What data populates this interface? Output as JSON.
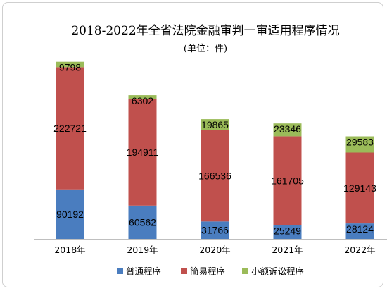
{
  "chart_data": {
    "type": "bar",
    "stacked": true,
    "title": "2018-2022年全省法院金融审判一审适用程序情况",
    "subtitle": "(单位：件)",
    "categories": [
      "2018年",
      "2019年",
      "2020年",
      "2021年",
      "2022年"
    ],
    "series": [
      {
        "name": "普通程序",
        "color": "#4a7dbf",
        "values": [
          90192,
          60562,
          31766,
          25249,
          28124
        ]
      },
      {
        "name": "简易程序",
        "color": "#c0504d",
        "values": [
          222721,
          194911,
          166536,
          161705,
          129143
        ]
      },
      {
        "name": "小额诉讼程序",
        "color": "#9bbb59",
        "values": [
          9798,
          6302,
          19865,
          23346,
          29583
        ]
      }
    ],
    "ylim": [
      0,
      330000
    ],
    "grid": false,
    "legend": "bottom"
  }
}
